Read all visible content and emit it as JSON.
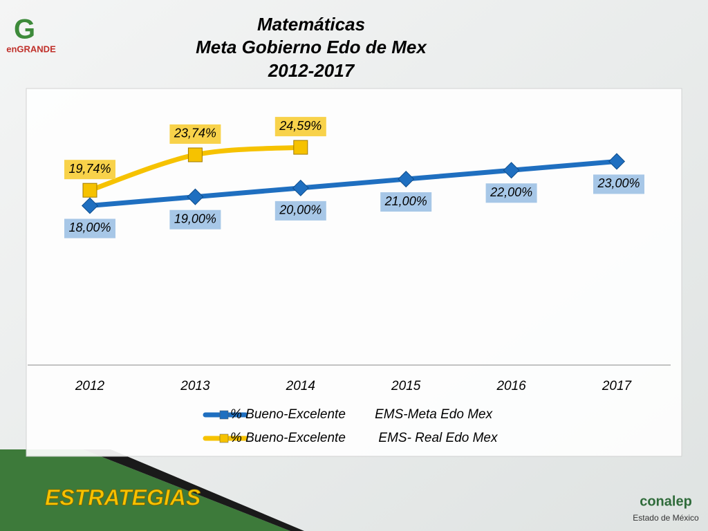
{
  "logos": {
    "left": "enGRANDE",
    "right": "conalep",
    "right_sub": "Estado de México"
  },
  "footer": "ESTRATEGIAS",
  "chart_data": {
    "type": "line",
    "title": [
      "Matemáticas",
      "Meta Gobierno Edo de Mex",
      "2012-2017"
    ],
    "categories": [
      "2012",
      "2013",
      "2014",
      "2015",
      "2016",
      "2017"
    ],
    "ylim": [
      0,
      31
    ],
    "series": [
      {
        "name": "% Bueno-Excelente        EMS-Meta Edo Mex",
        "color": "#1f6fc0",
        "marker": "diamond",
        "values": [
          18,
          19,
          20,
          21,
          22,
          23
        ],
        "value_labels": [
          "18,00%",
          "19,00%",
          "20,00%",
          "21,00%",
          "22,00%",
          "23,00%"
        ],
        "label_color": "#a7c7e7"
      },
      {
        "name": "% Bueno-Excelente         EMS- Real Edo Mex",
        "color": "#f6c200",
        "marker": "square",
        "values": [
          19.74,
          23.74,
          24.59,
          null,
          null,
          null
        ],
        "value_labels": [
          "19,74%",
          "23,74%",
          "24,59%",
          null,
          null,
          null
        ],
        "label_color": "#f8d24a"
      }
    ]
  }
}
